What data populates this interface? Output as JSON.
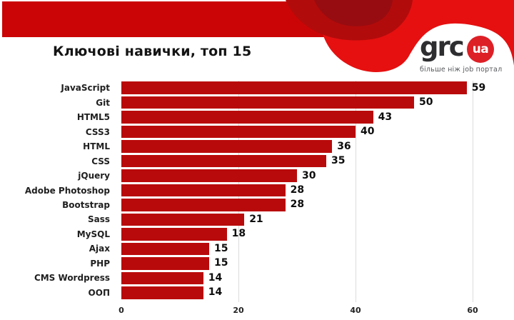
{
  "header": {
    "logo": {
      "text": "grc",
      "badge": "ua",
      "tagline": "більше ніж job портал"
    },
    "colors": {
      "banner_red": "#cb0505",
      "blob_red": "#e61010",
      "blob_dark_red": "#b20b0b",
      "blob_darker_red": "#970c10",
      "badge_red": "#dd2026",
      "bar_red": "#b90a0b"
    }
  },
  "title": "Ключові навички, топ 15",
  "chart_data": {
    "type": "bar",
    "orientation": "horizontal",
    "title": "Ключові навички, топ 15",
    "categories": [
      "JavaScript",
      "Git",
      "HTML5",
      "CSS3",
      "HTML",
      "CSS",
      "jQuery",
      "Adobe Photoshop",
      "Bootstrap",
      "Sass",
      "MySQL",
      "Ajax",
      "PHP",
      "CMS Wordpress",
      "ООП"
    ],
    "values": [
      59,
      50,
      43,
      40,
      36,
      35,
      30,
      28,
      28,
      21,
      18,
      15,
      15,
      14,
      14
    ],
    "xlabel": "",
    "ylabel": "",
    "x_ticks": [
      0,
      20,
      40,
      60
    ],
    "xlim": [
      0,
      62
    ],
    "grid": true,
    "legend": false,
    "bar_color": "#b90a0b",
    "value_labels": true
  }
}
